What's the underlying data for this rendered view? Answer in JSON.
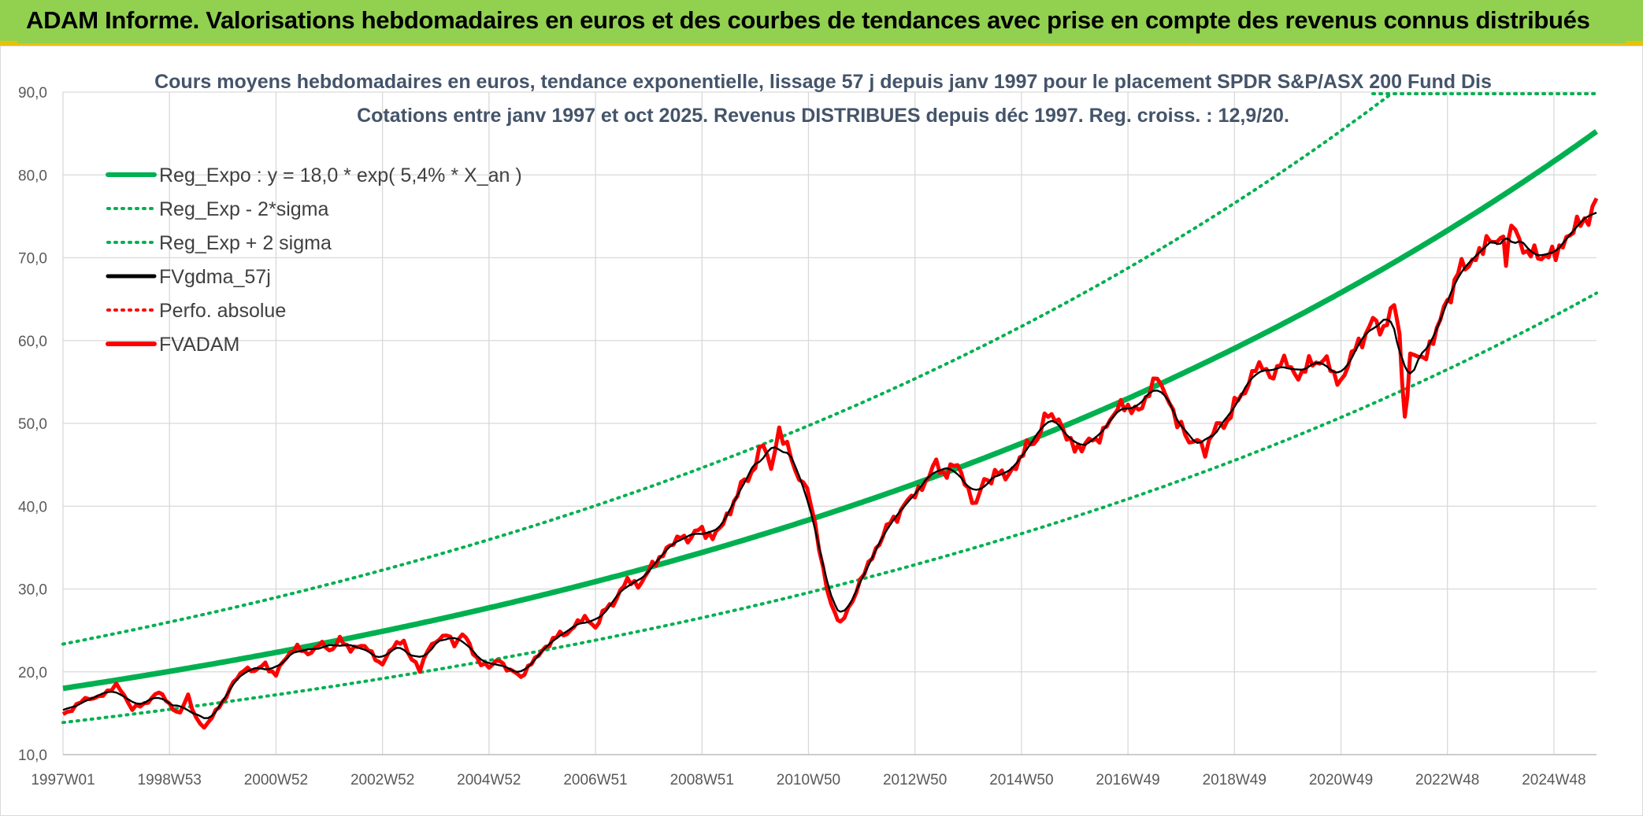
{
  "banner": {
    "title": "ADAM Informe. Valorisations hebdomadaires en euros et des courbes de tendances avec prise en compte des revenus connus distribués",
    "background": "#92d050",
    "accent": "#e9c200"
  },
  "chart_data": {
    "type": "line",
    "title_line1": "Cours moyens hebdomadaires en euros, tendance exponentielle, lissage 57 j depuis janv 1997 pour le placement SPDR S&P/ASX 200 Fund Dis",
    "title_line2": "Cotations entre janv 1997 et oct 2025. Revenus DISTRIBUES depuis déc 1997. Reg. croiss. : 12,9/20.",
    "ylim": [
      10,
      90
    ],
    "y_ticks": [
      "10,0",
      "20,0",
      "30,0",
      "40,0",
      "50,0",
      "60,0",
      "70,0",
      "80,0",
      "90,0"
    ],
    "x_ticks": [
      "1997W01",
      "1998W53",
      "2000W52",
      "2002W52",
      "2004W52",
      "2006W51",
      "2008W51",
      "2010W50",
      "2012W50",
      "2014W50",
      "2016W49",
      "2018W49",
      "2020W49",
      "2022W48",
      "2024W48"
    ],
    "x_tick_years": [
      1997.0,
      1999.0,
      2001.0,
      2003.0,
      2005.0,
      2007.0,
      2009.0,
      2011.0,
      2013.0,
      2015.0,
      2017.0,
      2019.0,
      2021.0,
      2023.0,
      2025.0
    ],
    "xlim": [
      1997.0,
      2025.8
    ],
    "grid": true,
    "legend_position": "top-left",
    "regression": {
      "a": 18.0,
      "rate": 0.054,
      "sigma_factor": 1.297
    },
    "series": [
      {
        "name": "Reg_Expo : y = 18,0 * exp( 5,4% *  X_an )",
        "color": "#00b050",
        "style": "solid-thick"
      },
      {
        "name": "Reg_Exp - 2*sigma",
        "color": "#00b050",
        "style": "dotted"
      },
      {
        "name": "Reg_Exp + 2 sigma",
        "color": "#00b050",
        "style": "dotted"
      },
      {
        "name": "FVgdma_57j",
        "color": "#000000",
        "style": "solid"
      },
      {
        "name": "Perfo. absolue",
        "color": "#ff0000",
        "style": "dotted"
      },
      {
        "name": "FVADAM",
        "color": "#ff0000",
        "style": "solid-thick"
      }
    ],
    "fvadam": [
      [
        1997.0,
        14.8
      ],
      [
        1997.25,
        16.0
      ],
      [
        1997.5,
        16.8
      ],
      [
        1997.75,
        17.2
      ],
      [
        1998.0,
        18.3
      ],
      [
        1998.15,
        17.3
      ],
      [
        1998.3,
        15.5
      ],
      [
        1998.45,
        15.8
      ],
      [
        1998.6,
        16.5
      ],
      [
        1998.8,
        17.6
      ],
      [
        1999.0,
        16.0
      ],
      [
        1999.2,
        15.0
      ],
      [
        1999.35,
        17.0
      ],
      [
        1999.5,
        14.5
      ],
      [
        1999.65,
        13.2
      ],
      [
        1999.8,
        14.5
      ],
      [
        2000.0,
        16.5
      ],
      [
        2000.2,
        18.5
      ],
      [
        2000.4,
        20.5
      ],
      [
        2000.6,
        20.0
      ],
      [
        2000.8,
        21.0
      ],
      [
        2001.0,
        19.5
      ],
      [
        2001.2,
        22.0
      ],
      [
        2001.4,
        23.0
      ],
      [
        2001.6,
        22.0
      ],
      [
        2001.8,
        23.5
      ],
      [
        2002.0,
        22.5
      ],
      [
        2002.2,
        24.0
      ],
      [
        2002.4,
        22.5
      ],
      [
        2002.6,
        23.5
      ],
      [
        2002.8,
        22.0
      ],
      [
        2003.0,
        21.0
      ],
      [
        2003.2,
        23.0
      ],
      [
        2003.4,
        23.8
      ],
      [
        2003.55,
        21.5
      ],
      [
        2003.7,
        20.0
      ],
      [
        2003.85,
        23.0
      ],
      [
        2004.0,
        23.5
      ],
      [
        2004.2,
        24.5
      ],
      [
        2004.35,
        23.5
      ],
      [
        2004.5,
        24.5
      ],
      [
        2004.7,
        22.5
      ],
      [
        2004.85,
        21.0
      ],
      [
        2005.0,
        20.5
      ],
      [
        2005.2,
        21.5
      ],
      [
        2005.4,
        20.0
      ],
      [
        2005.6,
        19.5
      ],
      [
        2005.8,
        21.0
      ],
      [
        2006.0,
        22.5
      ],
      [
        2006.2,
        24.0
      ],
      [
        2006.4,
        24.5
      ],
      [
        2006.6,
        25.5
      ],
      [
        2006.8,
        26.5
      ],
      [
        2007.0,
        25.5
      ],
      [
        2007.2,
        27.5
      ],
      [
        2007.4,
        29.0
      ],
      [
        2007.6,
        31.0
      ],
      [
        2007.8,
        30.5
      ],
      [
        2008.0,
        32.0
      ],
      [
        2008.2,
        34.0
      ],
      [
        2008.4,
        35.0
      ],
      [
        2008.6,
        36.5
      ],
      [
        2008.8,
        36.0
      ],
      [
        2009.0,
        37.5
      ],
      [
        2009.2,
        36.0
      ],
      [
        2009.4,
        38.0
      ],
      [
        2009.6,
        40.5
      ],
      [
        2009.8,
        43.0
      ],
      [
        2010.0,
        45.0
      ],
      [
        2010.15,
        47.5
      ],
      [
        2010.3,
        44.5
      ],
      [
        2010.45,
        49.5
      ],
      [
        2010.6,
        47.0
      ],
      [
        2010.75,
        44.0
      ],
      [
        2010.9,
        43.5
      ],
      [
        2011.05,
        40.0
      ],
      [
        2011.2,
        35.0
      ],
      [
        2011.35,
        30.0
      ],
      [
        2011.5,
        27.0
      ],
      [
        2011.6,
        25.5
      ],
      [
        2011.75,
        28.0
      ],
      [
        2011.9,
        29.5
      ],
      [
        2012.05,
        32.0
      ],
      [
        2012.2,
        34.0
      ],
      [
        2012.4,
        36.5
      ],
      [
        2012.6,
        38.5
      ],
      [
        2012.8,
        40.0
      ],
      [
        2013.0,
        41.5
      ],
      [
        2013.2,
        43.0
      ],
      [
        2013.4,
        45.0
      ],
      [
        2013.6,
        44.0
      ],
      [
        2013.8,
        45.0
      ],
      [
        2014.0,
        42.0
      ],
      [
        2014.15,
        40.0
      ],
      [
        2014.3,
        43.0
      ],
      [
        2014.5,
        44.0
      ],
      [
        2014.7,
        43.5
      ],
      [
        2014.9,
        45.0
      ],
      [
        2015.1,
        47.0
      ],
      [
        2015.3,
        48.5
      ],
      [
        2015.5,
        51.0
      ],
      [
        2015.7,
        50.5
      ],
      [
        2015.85,
        48.5
      ],
      [
        2016.0,
        46.5
      ],
      [
        2016.2,
        48.0
      ],
      [
        2016.4,
        47.5
      ],
      [
        2016.6,
        50.0
      ],
      [
        2016.8,
        51.5
      ],
      [
        2017.0,
        52.5
      ],
      [
        2017.2,
        51.0
      ],
      [
        2017.4,
        54.0
      ],
      [
        2017.55,
        56.0
      ],
      [
        2017.7,
        53.0
      ],
      [
        2017.85,
        51.5
      ],
      [
        2018.0,
        50.0
      ],
      [
        2018.15,
        47.0
      ],
      [
        2018.3,
        48.5
      ],
      [
        2018.45,
        46.5
      ],
      [
        2018.6,
        49.0
      ],
      [
        2018.8,
        50.0
      ],
      [
        2019.0,
        52.0
      ],
      [
        2019.2,
        54.0
      ],
      [
        2019.4,
        57.0
      ],
      [
        2019.6,
        56.0
      ],
      [
        2019.8,
        56.5
      ],
      [
        2020.0,
        57.5
      ],
      [
        2020.2,
        55.5
      ],
      [
        2020.4,
        57.0
      ],
      [
        2020.6,
        58.0
      ],
      [
        2020.8,
        56.5
      ],
      [
        2021.0,
        55.0
      ],
      [
        2021.2,
        58.0
      ],
      [
        2021.4,
        60.5
      ],
      [
        2021.6,
        62.0
      ],
      [
        2021.8,
        61.5
      ],
      [
        2022.0,
        64.5
      ],
      [
        2022.1,
        60.0
      ],
      [
        2022.2,
        51.0
      ],
      [
        2022.3,
        57.5
      ],
      [
        2022.45,
        58.0
      ],
      [
        2022.6,
        58.5
      ],
      [
        2022.8,
        61.0
      ],
      [
        2023.0,
        65.0
      ],
      [
        2023.2,
        68.0
      ],
      [
        2023.4,
        69.5
      ],
      [
        2023.6,
        70.5
      ],
      [
        2023.8,
        72.0
      ],
      [
        2024.0,
        73.0
      ],
      [
        2024.1,
        69.0
      ],
      [
        2024.2,
        75.0
      ],
      [
        2024.35,
        72.0
      ],
      [
        2024.5,
        70.0
      ],
      [
        2024.7,
        71.0
      ],
      [
        2024.9,
        69.5
      ],
      [
        2025.1,
        71.5
      ],
      [
        2025.3,
        72.5
      ],
      [
        2025.5,
        74.5
      ],
      [
        2025.8,
        76.0
      ]
    ]
  }
}
